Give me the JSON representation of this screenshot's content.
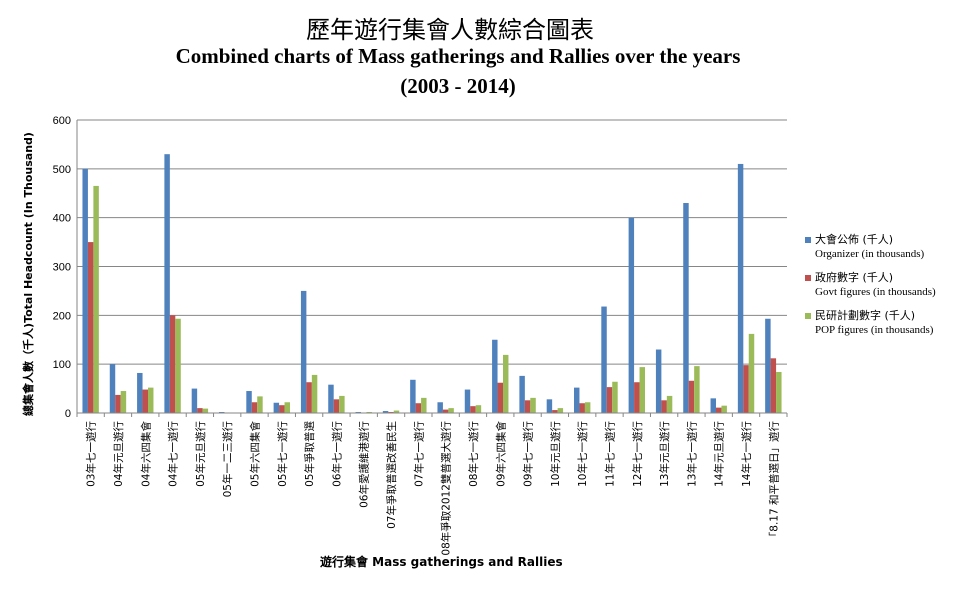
{
  "chart_data": {
    "type": "bar",
    "title": "歷年遊行集會人數綜合圖表",
    "subtitle": "Combined charts of Mass gatherings and Rallies over the years",
    "subtitle2": "(2003 - 2014)",
    "ylabel": "總集會人數（千人)Total Headcount (In Thousand)",
    "xlabel": "遊行集會 Mass gatherings and Rallies",
    "ylim": [
      0,
      600
    ],
    "yticks": [
      "0",
      "100",
      "200",
      "300",
      "400",
      "500",
      "600"
    ],
    "grid": true,
    "legend_position": "right",
    "categories": [
      "03年七一遊行",
      "04年元旦遊行",
      "04年六四集會",
      "04年七一遊行",
      "05年元旦遊行",
      "05年一二三遊行",
      "05年六四集會",
      "05年七一遊行",
      "05年爭取普選",
      "06年七一遊行",
      "06年愛護維港遊行",
      "07年爭取普選改善民生",
      "07年七一遊行",
      "08年爭取2012雙普選大遊行",
      "08年七一遊行",
      "09年六四集會",
      "09年七一遊行",
      "10年元旦遊行",
      "10年七一遊行",
      "11年七一遊行",
      "12年七一遊行",
      "13年元旦遊行",
      "13年七一遊行",
      "14年元旦遊行",
      "14年七一遊行",
      "「8.17 和平普選日」遊行"
    ],
    "series": [
      {
        "name": "大會公佈 (千人)",
        "name_en": "Organizer (in thousands)",
        "color": "#4f81bd",
        "values": [
          500,
          100,
          82,
          530,
          50,
          2,
          45,
          21,
          250,
          58,
          2,
          4,
          68,
          22,
          48,
          150,
          76,
          28,
          52,
          218,
          400,
          130,
          430,
          30,
          510,
          193
        ]
      },
      {
        "name": "政府數字 (千人)",
        "name_en": "Govt figures (in thousands)",
        "color": "#c0504d",
        "values": [
          350,
          37,
          48,
          200,
          10,
          1,
          22,
          16,
          63,
          28,
          1,
          2,
          20,
          7,
          14,
          62,
          26,
          6,
          20,
          53,
          63,
          26,
          66,
          11,
          98,
          112
        ]
      },
      {
        "name": "民研計劃數字 (千人)",
        "name_en": "POP figures (in thousands)",
        "color": "#9bbb59",
        "values": [
          465,
          45,
          52,
          193,
          9,
          1,
          34,
          22,
          78,
          35,
          2,
          5,
          31,
          10,
          16,
          119,
          31,
          10,
          22,
          64,
          94,
          35,
          96,
          15,
          162,
          84
        ]
      }
    ]
  }
}
